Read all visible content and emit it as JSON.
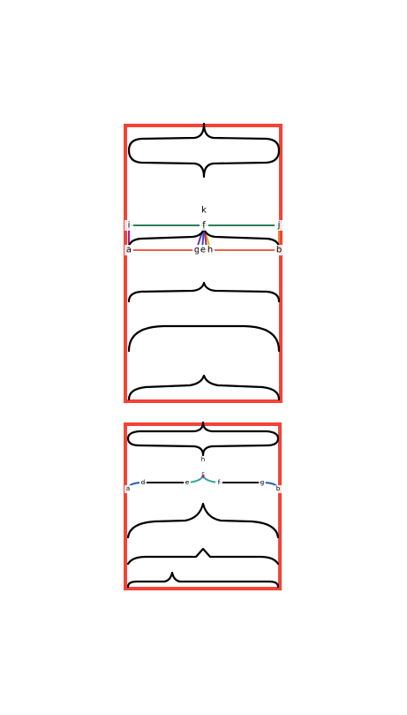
{
  "colors": {
    "frame": "#f44336",
    "green": "#2e7d5b",
    "red": "#f0604d",
    "magenta": "#b0179c",
    "orange": "#e8842c",
    "blue": "#1f5fb0",
    "purple": "#7a2fb5",
    "gold": "#e0b400",
    "teal": "#2aa198"
  },
  "panel1": {
    "labels": {
      "k": "k",
      "i": "i",
      "f": "f",
      "j": "j",
      "a": "a",
      "g": "g",
      "e": "e",
      "h": "h",
      "b": "b"
    }
  },
  "panel2": {
    "labels": {
      "h": "h",
      "c": "c",
      "a": "a",
      "d": "d",
      "e": "e",
      "f": "f",
      "g": "g",
      "b": "b"
    }
  }
}
